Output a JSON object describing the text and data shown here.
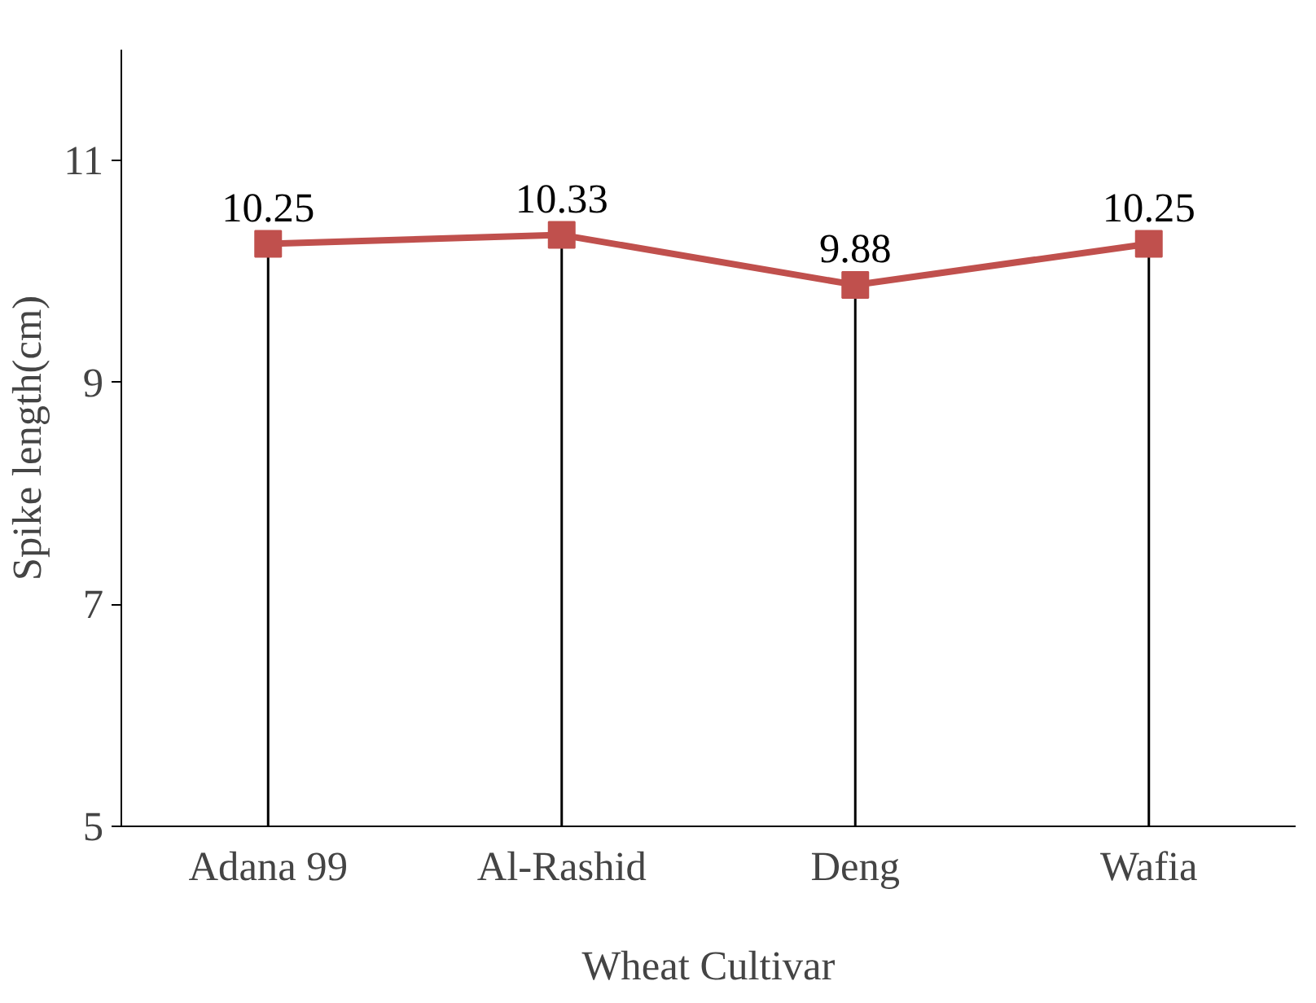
{
  "chart_data": {
    "type": "line",
    "xlabel": "Wheat Cultivar",
    "ylabel": "Spike length(cm)",
    "categories": [
      "Adana 99",
      "Al-Rashid",
      "Deng",
      "Wafia"
    ],
    "series": [
      {
        "color": "#c0504d",
        "values": [
          10.25,
          10.33,
          9.88,
          10.25
        ]
      }
    ],
    "marker": "square",
    "line_style": "solid",
    "data_labels": true,
    "grid": "x",
    "ylim": [
      5,
      12
    ],
    "yticks": [
      5,
      7,
      9,
      11
    ]
  }
}
